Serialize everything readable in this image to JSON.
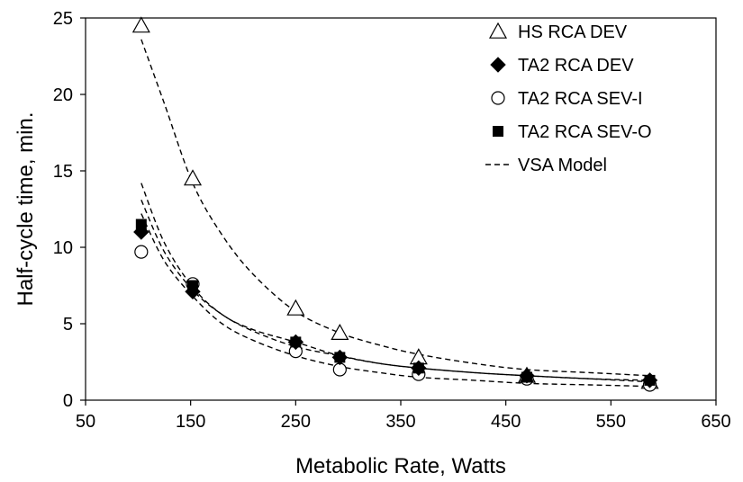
{
  "chart_data": {
    "type": "scatter",
    "title": "",
    "xlabel": "Metabolic Rate, Watts",
    "ylabel": "Half-cycle time, min.",
    "xlim": [
      50,
      650
    ],
    "ylim": [
      0,
      25
    ],
    "xticks": [
      50,
      150,
      250,
      350,
      450,
      550,
      650
    ],
    "yticks": [
      0,
      5,
      10,
      15,
      20,
      25
    ],
    "grid": false,
    "legend_position": "top-right",
    "series": [
      {
        "name": "HS RCA DEV",
        "marker": "open-triangle",
        "x": [
          103,
          152,
          250,
          292,
          367,
          470,
          587
        ],
        "y": [
          24.5,
          14.5,
          6.0,
          4.4,
          2.8,
          1.6,
          1.2
        ]
      },
      {
        "name": "TA2 RCA DEV",
        "marker": "filled-diamond",
        "x": [
          103,
          152,
          250,
          292,
          367,
          470,
          587
        ],
        "y": [
          11.0,
          7.1,
          3.8,
          2.8,
          2.1,
          1.6,
          1.3
        ]
      },
      {
        "name": "TA2 RCA SEV-I",
        "marker": "open-circle",
        "x": [
          103,
          152,
          250,
          292,
          367,
          470,
          587
        ],
        "y": [
          9.7,
          7.6,
          3.2,
          2.0,
          1.7,
          1.4,
          1.0
        ]
      },
      {
        "name": "TA2 RCA SEV-O",
        "marker": "filled-square",
        "x": [
          103,
          152,
          250,
          292,
          367,
          470,
          587
        ],
        "y": [
          11.5,
          7.5,
          3.8,
          2.8,
          2.1,
          1.5,
          1.3
        ]
      },
      {
        "name": "VSA Model",
        "marker": "dashed-line",
        "curves": [
          {
            "x": [
              103,
              125,
              152,
              180,
              210,
              250,
              292,
              330,
              367,
              420,
              470,
              530,
              587
            ],
            "y": [
              23.6,
              19.4,
              14.2,
              10.8,
              8.2,
              5.8,
              4.4,
              3.6,
              3.0,
              2.4,
              2.0,
              1.8,
              1.6
            ]
          },
          {
            "x": [
              103,
              125,
              152,
              180,
              210,
              250,
              292,
              330,
              367,
              420,
              470,
              530,
              587
            ],
            "y": [
              14.2,
              10.3,
              7.4,
              5.6,
              4.6,
              3.8,
              2.9,
              2.4,
              2.1,
              1.8,
              1.6,
              1.4,
              1.3
            ]
          },
          {
            "x": [
              103,
              125,
              152,
              180,
              210,
              250,
              292,
              330,
              367,
              420,
              470,
              530,
              587
            ],
            "y": [
              13.1,
              9.7,
              7.2,
              5.6,
              4.5,
              3.5,
              2.9,
              2.4,
              2.1,
              1.8,
              1.6,
              1.4,
              1.2
            ]
          },
          {
            "x": [
              103,
              125,
              152,
              180,
              210,
              250,
              292,
              330,
              367,
              420,
              470,
              530,
              587
            ],
            "y": [
              12.2,
              9.1,
              6.8,
              5.0,
              3.9,
              2.9,
              2.2,
              1.8,
              1.5,
              1.3,
              1.1,
              1.0,
              0.9
            ]
          }
        ]
      }
    ]
  }
}
